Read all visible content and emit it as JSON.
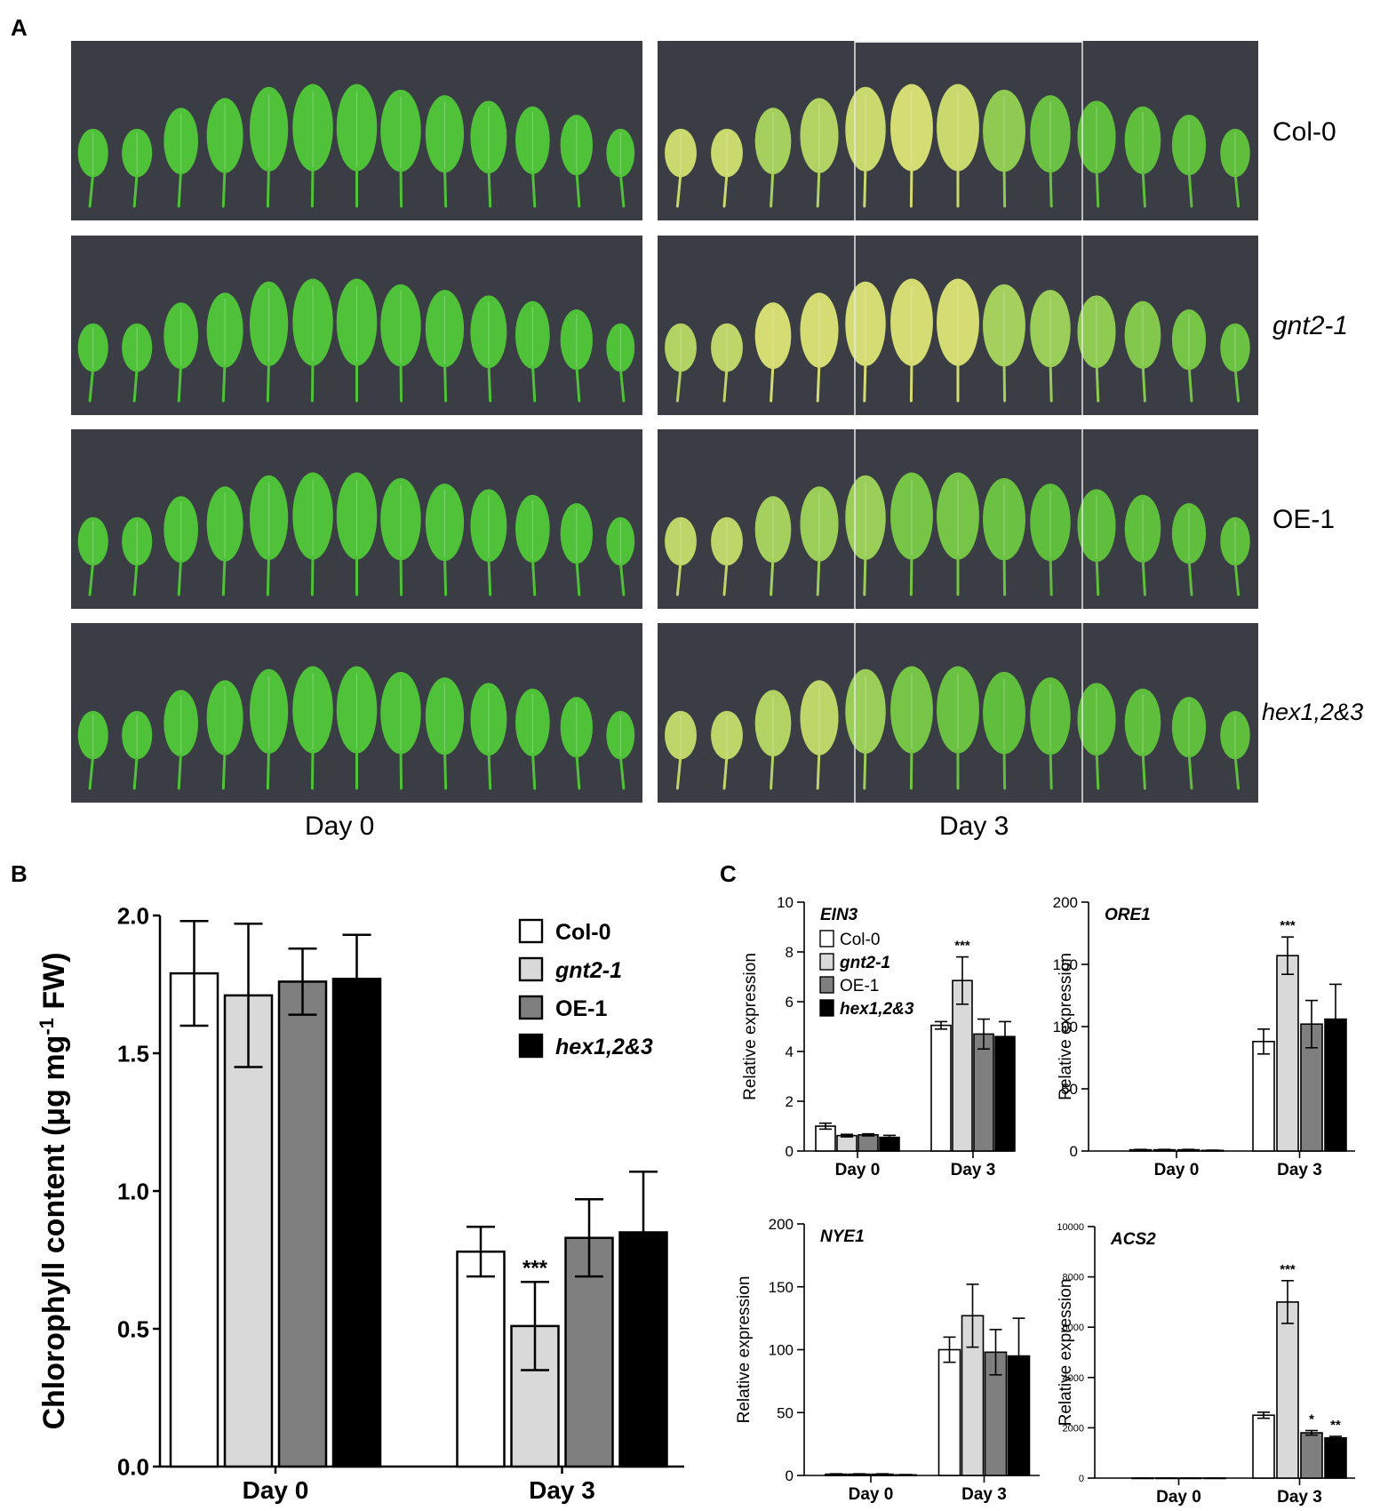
{
  "panel_a": {
    "letter": "A",
    "genotypes": [
      "Col-0",
      "gnt2-1",
      "OE-1",
      "hex1,2&3"
    ],
    "genotype_italic": [
      false,
      true,
      false,
      true
    ],
    "day_captions": [
      "Day 0",
      "Day 3"
    ],
    "leaves_per_row": 13,
    "colors": {
      "day0_leaf": "#4fc23a",
      "day3_yellow": "#d6dc74",
      "day3_green": "#5fbf3c",
      "background": "#3a3d44"
    }
  },
  "panel_b": {
    "letter": "B"
  },
  "panel_c": {
    "letter": "C"
  },
  "legend": [
    {
      "label": "Col-0",
      "italic": false,
      "color": "#ffffff"
    },
    {
      "label": "gnt2-1",
      "italic": true,
      "color": "#d9d9d9"
    },
    {
      "label": "OE-1",
      "italic": false,
      "color": "#7f7f7f"
    },
    {
      "label": "hex1,2&3",
      "italic": true,
      "color": "#000000"
    }
  ],
  "chart_data": [
    {
      "id": "B",
      "type": "bar",
      "title": "",
      "ylabel": "Chlorophyll content (μg mg-1 FW)",
      "ylabel_parts": [
        "Chlorophyll content (",
        "μ",
        "g mg",
        "-1",
        " FW)"
      ],
      "categories": [
        "Day 0",
        "Day 3"
      ],
      "ylim": [
        0,
        2.0
      ],
      "yticks": [
        0.0,
        0.5,
        1.0,
        1.5,
        2.0
      ],
      "ytick_labels": [
        "0.0",
        "0.5",
        "1.0",
        "1.5",
        "2.0"
      ],
      "series": [
        {
          "name": "Col-0",
          "values": [
            1.79,
            0.78
          ],
          "errors": [
            0.19,
            0.09
          ]
        },
        {
          "name": "gnt2-1",
          "values": [
            1.71,
            0.51
          ],
          "errors": [
            0.26,
            0.16
          ]
        },
        {
          "name": "OE-1",
          "values": [
            1.76,
            0.83
          ],
          "errors": [
            0.12,
            0.14
          ]
        },
        {
          "name": "hex1,2&3",
          "values": [
            1.77,
            0.85
          ],
          "errors": [
            0.16,
            0.22
          ]
        }
      ],
      "annotations": [
        {
          "series": 1,
          "category": 1,
          "text": "***"
        }
      ],
      "legend_position": "top-right"
    },
    {
      "id": "C1",
      "type": "bar",
      "title": "EIN3",
      "ylabel": "Relative expression",
      "categories": [
        "Day 0",
        "Day 3"
      ],
      "ylim": [
        0,
        10
      ],
      "yticks": [
        0,
        2,
        4,
        6,
        8,
        10
      ],
      "ytick_labels": [
        "0",
        "2",
        "4",
        "6",
        "8",
        "10"
      ],
      "series": [
        {
          "name": "Col-0",
          "values": [
            1.0,
            5.05
          ],
          "errors": [
            0.12,
            0.15
          ]
        },
        {
          "name": "gnt2-1",
          "values": [
            0.62,
            6.85
          ],
          "errors": [
            0.05,
            0.95
          ]
        },
        {
          "name": "OE-1",
          "values": [
            0.65,
            4.7
          ],
          "errors": [
            0.04,
            0.6
          ]
        },
        {
          "name": "hex1,2&3",
          "values": [
            0.55,
            4.6
          ],
          "errors": [
            0.08,
            0.6
          ]
        }
      ],
      "annotations": [
        {
          "series": 1,
          "category": 1,
          "text": "***"
        }
      ],
      "legend_position": "top-left"
    },
    {
      "id": "C2",
      "type": "bar",
      "title": "ORE1",
      "ylabel": "Relative expression",
      "categories": [
        "Day 0",
        "Day 3"
      ],
      "ylim": [
        0,
        200
      ],
      "yticks": [
        0,
        50,
        100,
        150,
        200
      ],
      "ytick_labels": [
        "0",
        "50",
        "100",
        "150",
        "200"
      ],
      "series": [
        {
          "name": "Col-0",
          "values": [
            1,
            88
          ],
          "errors": [
            0.3,
            10
          ]
        },
        {
          "name": "gnt2-1",
          "values": [
            1,
            157
          ],
          "errors": [
            0.3,
            15
          ]
        },
        {
          "name": "OE-1",
          "values": [
            1,
            102
          ],
          "errors": [
            0.3,
            19
          ]
        },
        {
          "name": "hex1,2&3",
          "values": [
            0.5,
            106
          ],
          "errors": [
            0.2,
            28
          ]
        }
      ],
      "annotations": [
        {
          "series": 1,
          "category": 1,
          "text": "***"
        }
      ]
    },
    {
      "id": "C3",
      "type": "bar",
      "title": "NYE1",
      "ylabel": "Relative expression",
      "categories": [
        "Day 0",
        "Day 3"
      ],
      "ylim": [
        0,
        200
      ],
      "yticks": [
        0,
        50,
        100,
        150,
        200
      ],
      "ytick_labels": [
        "0",
        "50",
        "100",
        "150",
        "200"
      ],
      "series": [
        {
          "name": "Col-0",
          "values": [
            1,
            100
          ],
          "errors": [
            0.3,
            10
          ]
        },
        {
          "name": "gnt2-1",
          "values": [
            1,
            127
          ],
          "errors": [
            0.3,
            25
          ]
        },
        {
          "name": "OE-1",
          "values": [
            1,
            98
          ],
          "errors": [
            0.3,
            18
          ]
        },
        {
          "name": "hex1,2&3",
          "values": [
            0.5,
            95
          ],
          "errors": [
            0.2,
            30
          ]
        }
      ],
      "annotations": []
    },
    {
      "id": "C4",
      "type": "bar",
      "title": "ACS2",
      "ylabel": "Relative expression",
      "categories": [
        "Day 0",
        "Day 3"
      ],
      "ylim": [
        0,
        10000
      ],
      "yticks": [
        0,
        2000,
        4000,
        6000,
        8000,
        10000
      ],
      "ytick_labels": [
        "0",
        "2000",
        "4000",
        "6000",
        "8000",
        "10000"
      ],
      "series": [
        {
          "name": "Col-0",
          "values": [
            2,
            2500
          ],
          "errors": [
            1,
            120
          ]
        },
        {
          "name": "gnt2-1",
          "values": [
            2,
            7000
          ],
          "errors": [
            1,
            850
          ]
        },
        {
          "name": "OE-1",
          "values": [
            2,
            1800
          ],
          "errors": [
            1,
            90
          ]
        },
        {
          "name": "hex1,2&3",
          "values": [
            2,
            1600
          ],
          "errors": [
            1,
            60
          ]
        }
      ],
      "annotations": [
        {
          "series": 1,
          "category": 1,
          "text": "***"
        },
        {
          "series": 2,
          "category": 1,
          "text": "*"
        },
        {
          "series": 3,
          "category": 1,
          "text": "**"
        }
      ]
    }
  ]
}
